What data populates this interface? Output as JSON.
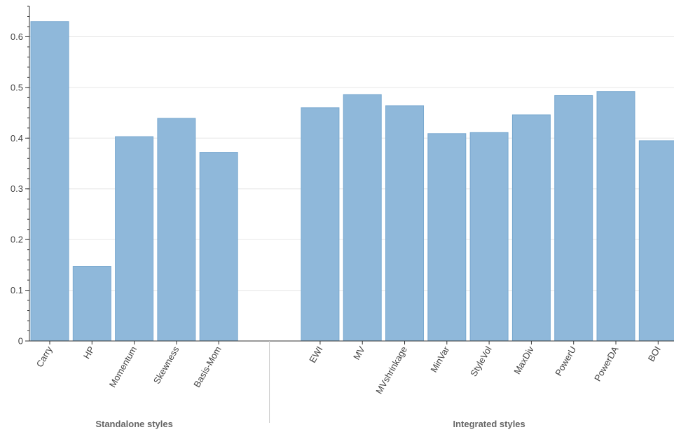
{
  "chart_data": {
    "type": "bar",
    "groups": [
      {
        "name": "Standalone styles",
        "categories": [
          "Carry",
          "HP",
          "Momentum",
          "Skewness",
          "Basis-Mom"
        ],
        "values": [
          0.63,
          0.147,
          0.403,
          0.439,
          0.372
        ]
      },
      {
        "name": "Integrated styles",
        "categories": [
          "EWI",
          "MV",
          "MVshrinkage",
          "MinVar",
          "StyleVol",
          "MaxDiv",
          "PowerU",
          "PowerDA",
          "BOI"
        ],
        "values": [
          0.46,
          0.486,
          0.464,
          0.409,
          0.411,
          0.446,
          0.484,
          0.492,
          0.395
        ]
      }
    ],
    "yticks": [
      "0",
      "0.1",
      "0.2",
      "0.3",
      "0.4",
      "0.5",
      "0.6"
    ],
    "ylim": [
      0,
      0.66
    ],
    "grid": "horizontal",
    "colors": {
      "bar_fill": "#8fb8da",
      "bar_stroke": "#7aa9d0",
      "grid": "#e6e6e6",
      "axis": "#333333",
      "separator": "#cccccc"
    }
  }
}
